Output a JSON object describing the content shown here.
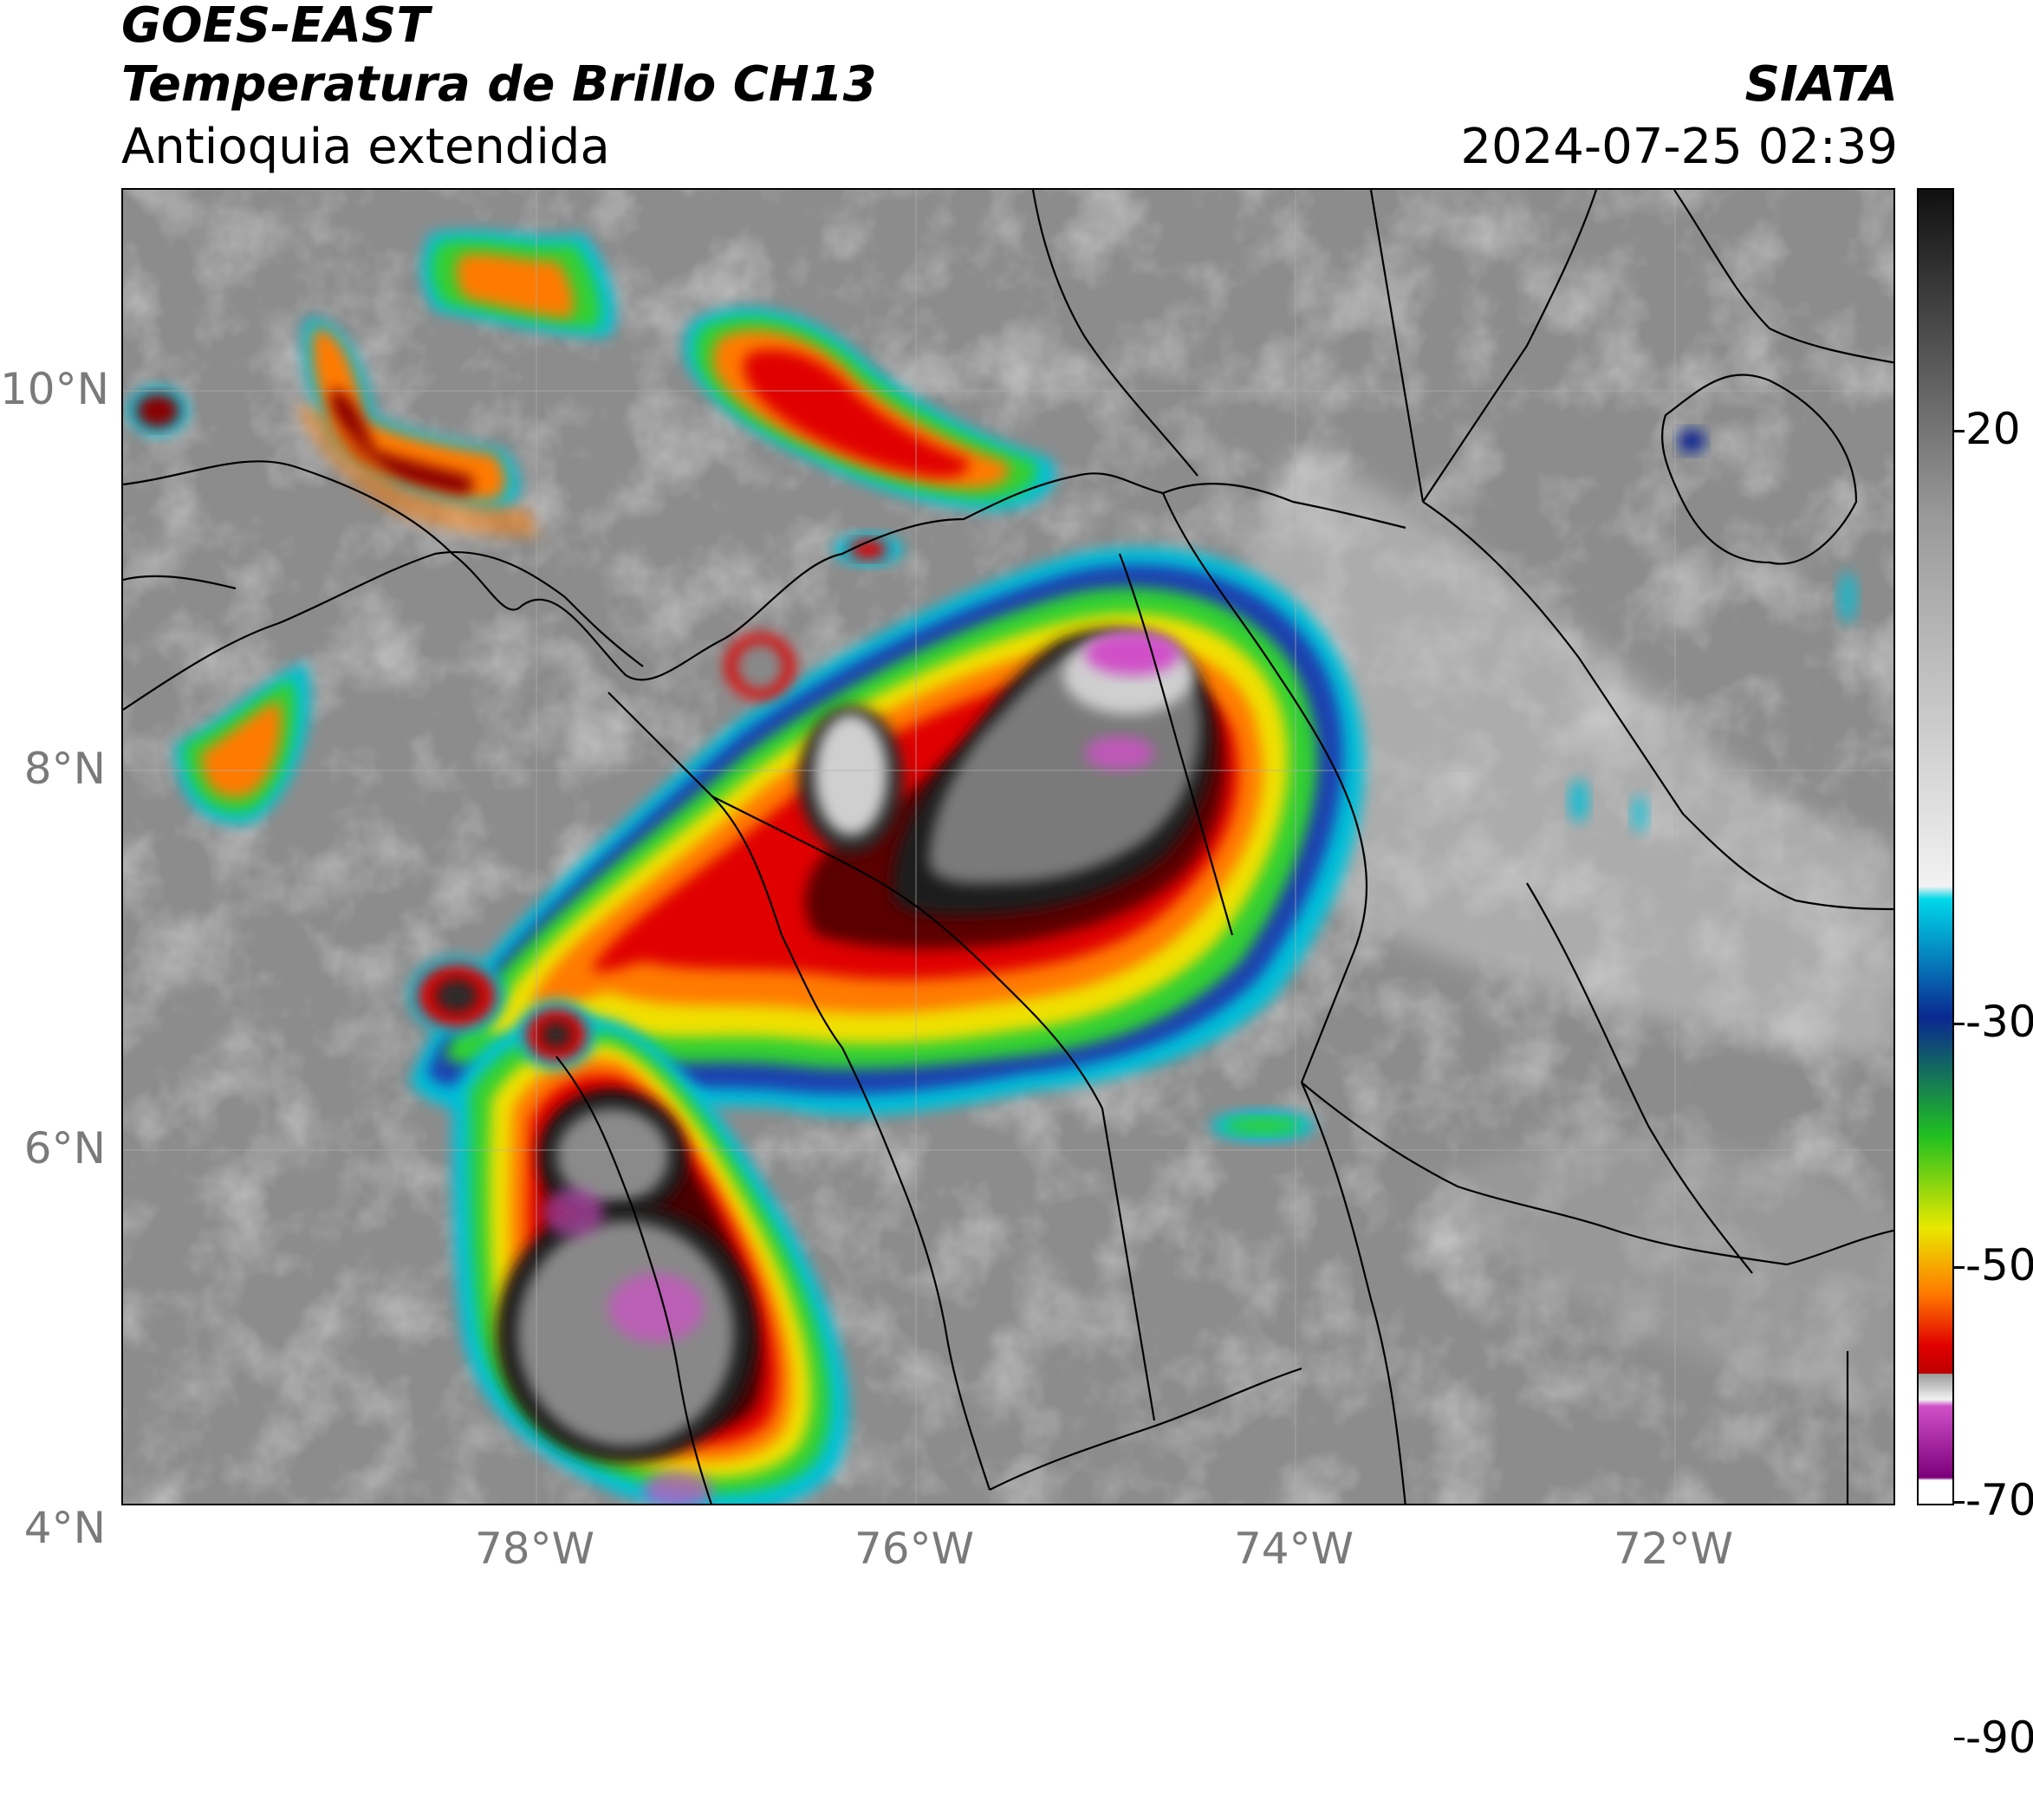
{
  "header": {
    "satellite": "GOES-EAST",
    "product": "Temperatura de Brillo CH13",
    "region": "Antioquia extendida",
    "agency": "SIATA",
    "timestamp": "2024-07-25 02:39"
  },
  "map": {
    "lat_labels": [
      "10°N",
      "8°N",
      "6°N",
      "4°N"
    ],
    "lon_labels": [
      "78°W",
      "76°W",
      "74°W",
      "72°W"
    ],
    "background_color": "#8c8c8c"
  },
  "colorbar": {
    "tick_labels": [
      "20",
      "-30",
      "-50",
      "-70",
      "-90"
    ],
    "colors": {
      "warm_top": "#101010",
      "grey": "#9a9a9a",
      "white": "#f2f2f2",
      "cyan": "#00d8ea",
      "blue": "#0a2890",
      "green": "#20c020",
      "yellow": "#e8e800",
      "orange": "#ff7a00",
      "red": "#e00000",
      "dark_red": "#5a0000",
      "black": "#050505",
      "magenta": "#d050c8",
      "purple": "#7a007a"
    }
  }
}
